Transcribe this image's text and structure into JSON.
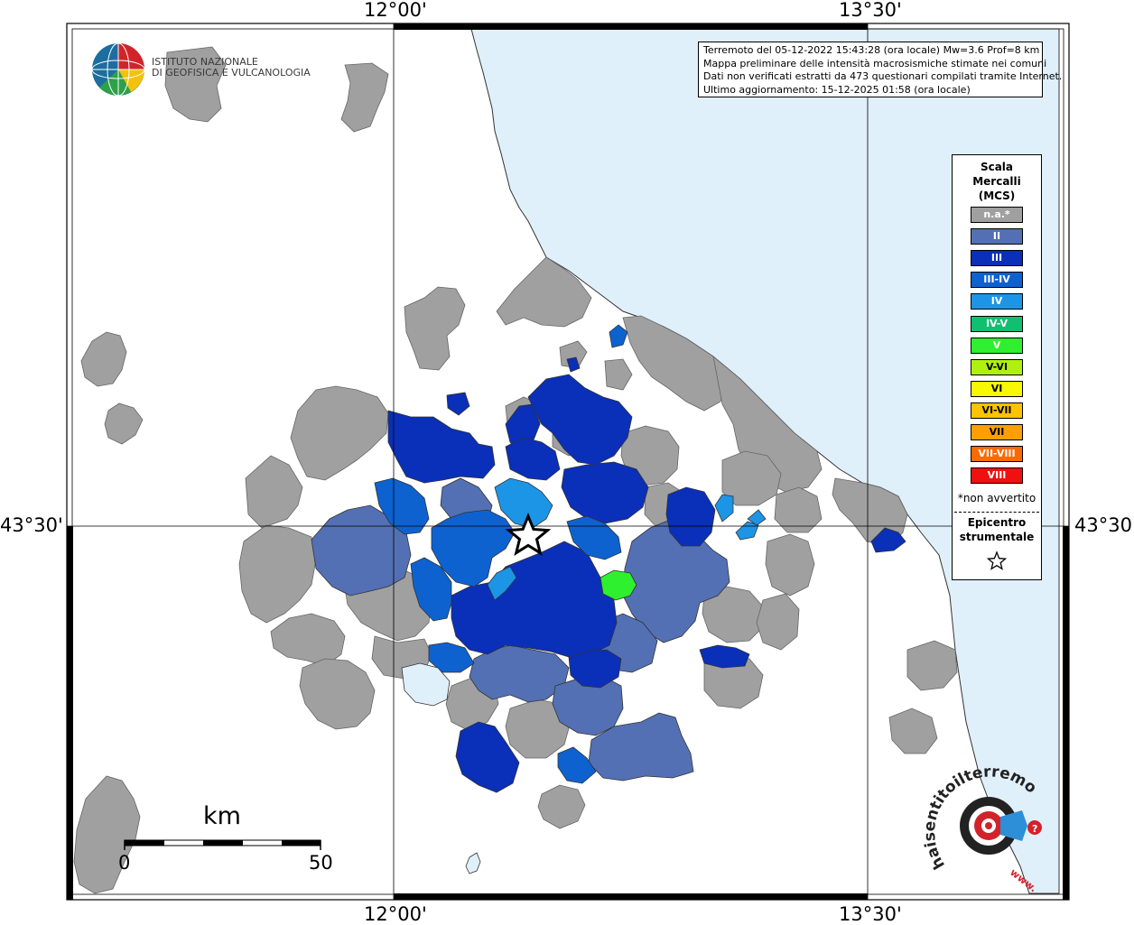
{
  "coords": {
    "top_left": "12°00'",
    "top_right": "13°30'",
    "bottom_left": "12°00'",
    "bottom_right": "13°30'",
    "left": "43°30'",
    "right": "43°30'"
  },
  "institute": {
    "line1": "ISTITUTO NAZIONALE",
    "line2": "DI GEOFISICA E VULCANOLOGIA"
  },
  "info": {
    "line1": "Terremoto del 05-12-2022 15:43:28 (ora locale) Mw=3.6 Prof=8 km",
    "line2": "Mappa preliminare delle intensità macrosismiche stimate nei comuni",
    "line3": "Dati non verificati estratti da 473 questionari compilati tramite Internet.",
    "line4": "Ultimo aggiornamento: 15-12-2025 01:58 (ora locale)"
  },
  "legend": {
    "title1": "Scala",
    "title2": "Mercalli",
    "title3": "(MCS)",
    "items": [
      {
        "label": "n.a.*",
        "color": "#a0a0a0"
      },
      {
        "label": "II",
        "color": "#5470b4"
      },
      {
        "label": "III",
        "color": "#0a2fb8"
      },
      {
        "label": "III-IV",
        "color": "#0d62d0"
      },
      {
        "label": "IV",
        "color": "#1d95e6"
      },
      {
        "label": "IV-V",
        "color": "#10c070"
      },
      {
        "label": "V",
        "color": "#2ef02e"
      },
      {
        "label": "V-VI",
        "color": "#b0f010"
      },
      {
        "label": "VI",
        "color": "#f8f800"
      },
      {
        "label": "VI-VII",
        "color": "#fbc300"
      },
      {
        "label": "VII",
        "color": "#fba000"
      },
      {
        "label": "VII-VIII",
        "color": "#fb6a00"
      },
      {
        "label": "VIII",
        "color": "#f01010"
      }
    ],
    "note": "*non avvertito",
    "epi1": "Epicentro",
    "epi2": "strumentale"
  },
  "scale": {
    "unit": "km",
    "start": "0",
    "end": "50"
  },
  "brand": {
    "text": "haisentitoilterremoto.it",
    "www": "www."
  },
  "colors": {
    "sea": "#e0f0fb",
    "land": "#ffffff",
    "na": "#a0a0a0"
  }
}
